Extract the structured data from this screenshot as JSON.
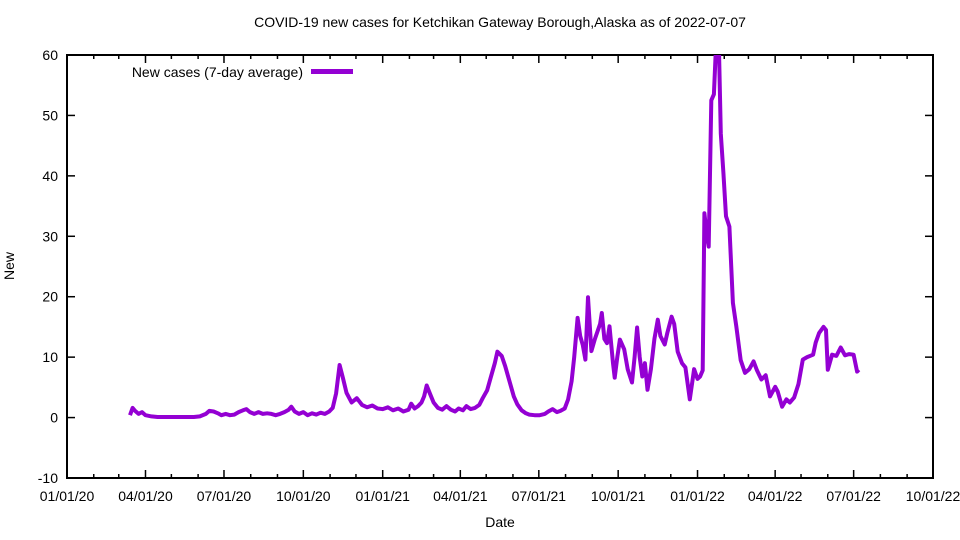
{
  "page": {
    "title": "COVID-19 new cases for Ketchikan Gateway Borough,Alaska as of 2022-07-07"
  },
  "legend": {
    "label": "New cases (7-day average)"
  },
  "axes": {
    "x": {
      "label": "Date",
      "tick_labels": [
        "01/01/20",
        "04/01/20",
        "07/01/20",
        "10/01/20",
        "01/01/21",
        "04/01/21",
        "07/01/21",
        "10/01/21",
        "01/01/22",
        "04/01/22",
        "07/01/22",
        "10/01/22"
      ]
    },
    "y": {
      "label": "New",
      "tick_labels": [
        "-10",
        "0",
        "10",
        "20",
        "30",
        "40",
        "50",
        "60"
      ]
    }
  },
  "style": {
    "line_color": "#9400d3",
    "axis_color": "#000000",
    "background": "#ffffff"
  },
  "chart_data": {
    "type": "line",
    "title": "COVID-19 new cases for Ketchikan Gateway Borough,Alaska as of 2022-07-07",
    "xlabel": "Date",
    "ylabel": "New",
    "xlim": [
      "2020-01-01",
      "2022-10-01"
    ],
    "ylim": [
      -10,
      60
    ],
    "grid": false,
    "x_major_tick_interval": "3 months",
    "x_minor_tick_interval": "1 month",
    "legend_position": "inside top-left",
    "series": [
      {
        "name": "New cases (7-day average)",
        "color": "#9400d3",
        "points": [
          [
            "2020-03-14",
            0.4
          ],
          [
            "2020-03-17",
            1.6
          ],
          [
            "2020-03-20",
            1.1
          ],
          [
            "2020-03-24",
            0.6
          ],
          [
            "2020-03-28",
            0.9
          ],
          [
            "2020-04-01",
            0.4
          ],
          [
            "2020-04-08",
            0.2
          ],
          [
            "2020-04-15",
            0.1
          ],
          [
            "2020-04-22",
            0.1
          ],
          [
            "2020-04-29",
            0.1
          ],
          [
            "2020-05-06",
            0.1
          ],
          [
            "2020-05-13",
            0.1
          ],
          [
            "2020-05-20",
            0.1
          ],
          [
            "2020-05-27",
            0.1
          ],
          [
            "2020-06-03",
            0.2
          ],
          [
            "2020-06-10",
            0.6
          ],
          [
            "2020-06-14",
            1.1
          ],
          [
            "2020-06-19",
            1.0
          ],
          [
            "2020-06-24",
            0.7
          ],
          [
            "2020-06-28",
            0.4
          ],
          [
            "2020-07-03",
            0.6
          ],
          [
            "2020-07-08",
            0.4
          ],
          [
            "2020-07-13",
            0.5
          ],
          [
            "2020-07-18",
            0.9
          ],
          [
            "2020-07-23",
            1.2
          ],
          [
            "2020-07-27",
            1.4
          ],
          [
            "2020-07-31",
            0.9
          ],
          [
            "2020-08-05",
            0.6
          ],
          [
            "2020-08-10",
            0.9
          ],
          [
            "2020-08-15",
            0.6
          ],
          [
            "2020-08-20",
            0.7
          ],
          [
            "2020-08-25",
            0.6
          ],
          [
            "2020-08-30",
            0.4
          ],
          [
            "2020-09-04",
            0.6
          ],
          [
            "2020-09-09",
            0.9
          ],
          [
            "2020-09-14",
            1.3
          ],
          [
            "2020-09-17",
            1.8
          ],
          [
            "2020-09-21",
            1.0
          ],
          [
            "2020-09-26",
            0.6
          ],
          [
            "2020-10-01",
            0.9
          ],
          [
            "2020-10-06",
            0.4
          ],
          [
            "2020-10-11",
            0.7
          ],
          [
            "2020-10-16",
            0.5
          ],
          [
            "2020-10-21",
            0.8
          ],
          [
            "2020-10-26",
            0.6
          ],
          [
            "2020-10-31",
            1.0
          ],
          [
            "2020-11-04",
            1.6
          ],
          [
            "2020-11-08",
            4.0
          ],
          [
            "2020-11-12",
            8.7
          ],
          [
            "2020-11-16",
            6.5
          ],
          [
            "2020-11-20",
            4.1
          ],
          [
            "2020-11-26",
            2.5
          ],
          [
            "2020-12-02",
            3.2
          ],
          [
            "2020-12-08",
            2.1
          ],
          [
            "2020-12-14",
            1.7
          ],
          [
            "2020-12-20",
            2.0
          ],
          [
            "2020-12-26",
            1.5
          ],
          [
            "2021-01-01",
            1.4
          ],
          [
            "2021-01-07",
            1.7
          ],
          [
            "2021-01-13",
            1.2
          ],
          [
            "2021-01-19",
            1.5
          ],
          [
            "2021-01-25",
            1.0
          ],
          [
            "2021-01-31",
            1.3
          ],
          [
            "2021-02-03",
            2.3
          ],
          [
            "2021-02-07",
            1.5
          ],
          [
            "2021-02-11",
            1.9
          ],
          [
            "2021-02-15",
            2.5
          ],
          [
            "2021-02-18",
            3.5
          ],
          [
            "2021-02-21",
            5.3
          ],
          [
            "2021-02-25",
            3.9
          ],
          [
            "2021-03-01",
            2.5
          ],
          [
            "2021-03-06",
            1.6
          ],
          [
            "2021-03-11",
            1.3
          ],
          [
            "2021-03-16",
            1.9
          ],
          [
            "2021-03-21",
            1.3
          ],
          [
            "2021-03-26",
            1.0
          ],
          [
            "2021-03-30",
            1.5
          ],
          [
            "2021-04-04",
            1.2
          ],
          [
            "2021-04-08",
            1.9
          ],
          [
            "2021-04-13",
            1.4
          ],
          [
            "2021-04-18",
            1.6
          ],
          [
            "2021-04-23",
            2.1
          ],
          [
            "2021-04-27",
            3.2
          ],
          [
            "2021-05-02",
            4.5
          ],
          [
            "2021-05-06",
            6.5
          ],
          [
            "2021-05-11",
            9.0
          ],
          [
            "2021-05-14",
            10.9
          ],
          [
            "2021-05-19",
            10.2
          ],
          [
            "2021-05-23",
            8.5
          ],
          [
            "2021-05-28",
            6.0
          ],
          [
            "2021-06-02",
            3.5
          ],
          [
            "2021-06-06",
            2.2
          ],
          [
            "2021-06-11",
            1.2
          ],
          [
            "2021-06-16",
            0.7
          ],
          [
            "2021-06-20",
            0.5
          ],
          [
            "2021-06-26",
            0.4
          ],
          [
            "2021-07-02",
            0.4
          ],
          [
            "2021-07-08",
            0.6
          ],
          [
            "2021-07-12",
            1.0
          ],
          [
            "2021-07-17",
            1.4
          ],
          [
            "2021-07-22",
            0.9
          ],
          [
            "2021-07-26",
            1.1
          ],
          [
            "2021-07-31",
            1.5
          ],
          [
            "2021-08-04",
            3.0
          ],
          [
            "2021-08-08",
            6.0
          ],
          [
            "2021-08-11",
            10.0
          ],
          [
            "2021-08-15",
            16.5
          ],
          [
            "2021-08-18",
            13.5
          ],
          [
            "2021-08-21",
            12.0
          ],
          [
            "2021-08-24",
            9.6
          ],
          [
            "2021-08-27",
            19.9
          ],
          [
            "2021-08-31",
            11.0
          ],
          [
            "2021-09-04",
            13.0
          ],
          [
            "2021-09-10",
            15.5
          ],
          [
            "2021-09-12",
            17.3
          ],
          [
            "2021-09-15",
            13.0
          ],
          [
            "2021-09-18",
            12.3
          ],
          [
            "2021-09-21",
            15.1
          ],
          [
            "2021-09-25",
            9.0
          ],
          [
            "2021-09-27",
            6.6
          ],
          [
            "2021-09-30",
            10.0
          ],
          [
            "2021-10-03",
            12.9
          ],
          [
            "2021-10-08",
            11.3
          ],
          [
            "2021-10-12",
            8.0
          ],
          [
            "2021-10-17",
            5.8
          ],
          [
            "2021-10-20",
            10.0
          ],
          [
            "2021-10-23",
            14.9
          ],
          [
            "2021-10-26",
            10.0
          ],
          [
            "2021-10-29",
            6.8
          ],
          [
            "2021-11-01",
            9.0
          ],
          [
            "2021-11-04",
            4.6
          ],
          [
            "2021-11-08",
            8.0
          ],
          [
            "2021-11-12",
            13.0
          ],
          [
            "2021-11-16",
            16.2
          ],
          [
            "2021-11-19",
            13.5
          ],
          [
            "2021-11-24",
            12.1
          ],
          [
            "2021-11-27",
            14.0
          ],
          [
            "2021-12-02",
            16.7
          ],
          [
            "2021-12-05",
            15.5
          ],
          [
            "2021-12-09",
            10.9
          ],
          [
            "2021-12-14",
            9.0
          ],
          [
            "2021-12-18",
            8.3
          ],
          [
            "2021-12-23",
            3.0
          ],
          [
            "2021-12-28",
            8.0
          ],
          [
            "2022-01-01",
            6.4
          ],
          [
            "2022-01-04",
            6.8
          ],
          [
            "2022-01-07",
            7.8
          ],
          [
            "2022-01-09",
            33.8
          ],
          [
            "2022-01-12",
            30.0
          ],
          [
            "2022-01-14",
            28.3
          ],
          [
            "2022-01-17",
            52.5
          ],
          [
            "2022-01-20",
            53.5
          ],
          [
            "2022-01-22",
            60.0
          ],
          [
            "2022-01-26",
            60.0
          ],
          [
            "2022-01-28",
            47.0
          ],
          [
            "2022-01-31",
            40.5
          ],
          [
            "2022-02-03",
            33.3
          ],
          [
            "2022-02-07",
            31.6
          ],
          [
            "2022-02-11",
            19.0
          ],
          [
            "2022-02-15",
            15.1
          ],
          [
            "2022-02-20",
            9.5
          ],
          [
            "2022-02-25",
            7.4
          ],
          [
            "2022-03-02",
            8.0
          ],
          [
            "2022-03-07",
            9.3
          ],
          [
            "2022-03-11",
            7.8
          ],
          [
            "2022-03-16",
            6.3
          ],
          [
            "2022-03-21",
            7.0
          ],
          [
            "2022-03-26",
            3.5
          ],
          [
            "2022-04-01",
            5.1
          ],
          [
            "2022-04-04",
            4.3
          ],
          [
            "2022-04-09",
            1.8
          ],
          [
            "2022-04-14",
            3.0
          ],
          [
            "2022-04-18",
            2.5
          ],
          [
            "2022-04-23",
            3.3
          ],
          [
            "2022-04-28",
            5.5
          ],
          [
            "2022-05-03",
            9.6
          ],
          [
            "2022-05-08",
            10.0
          ],
          [
            "2022-05-15",
            10.4
          ],
          [
            "2022-05-18",
            12.4
          ],
          [
            "2022-05-22",
            14.0
          ],
          [
            "2022-05-27",
            15.0
          ],
          [
            "2022-05-30",
            14.5
          ],
          [
            "2022-06-01",
            7.9
          ],
          [
            "2022-06-06",
            10.4
          ],
          [
            "2022-06-11",
            10.2
          ],
          [
            "2022-06-16",
            11.6
          ],
          [
            "2022-06-21",
            10.3
          ],
          [
            "2022-06-26",
            10.5
          ],
          [
            "2022-07-01",
            10.4
          ],
          [
            "2022-07-05",
            7.6
          ],
          [
            "2022-07-07",
            7.9
          ]
        ]
      }
    ]
  }
}
